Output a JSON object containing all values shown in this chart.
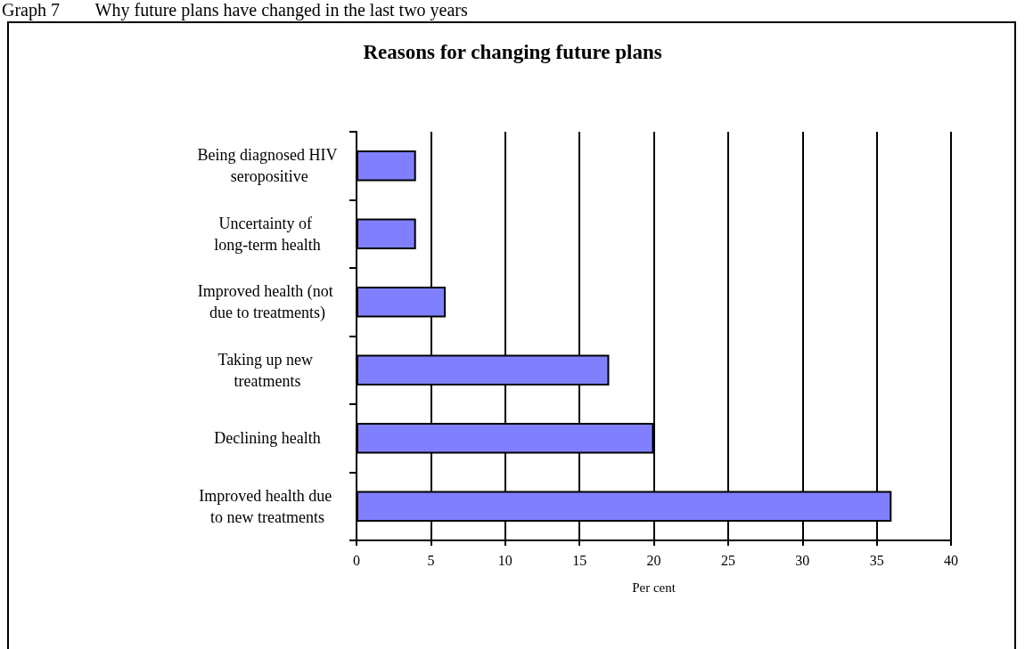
{
  "chart_data": {
    "type": "bar",
    "orientation": "horizontal",
    "title": "Reasons for changing future plans",
    "xlabel": "Per cent",
    "annotations": [
      "Graph 7        Why future plans have changed in the last two years"
    ],
    "categories": [
      "Being diagnosed HIV seropositive",
      "Uncertainty of long-term health",
      "Improved health (not due to treatments)",
      "Taking up new treatments",
      "Declining health",
      "Improved health due to new treatments"
    ],
    "values": [
      4,
      4,
      6,
      17,
      20,
      36
    ],
    "color": "#8080ff",
    "xlim": [
      0,
      40
    ],
    "xticks": [
      0,
      5,
      10,
      15,
      20,
      25,
      30,
      35,
      40
    ],
    "grid": "x"
  }
}
